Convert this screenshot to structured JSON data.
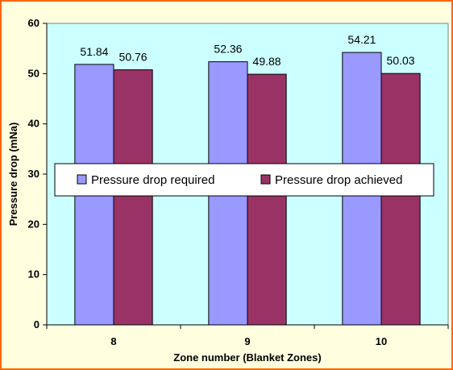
{
  "chart_data": {
    "type": "bar",
    "categories": [
      "8",
      "9",
      "10"
    ],
    "series": [
      {
        "name": "Pressure drop required",
        "values": [
          51.84,
          52.36,
          54.21
        ],
        "color": "#9999ff"
      },
      {
        "name": "Pressure drop achieved",
        "values": [
          50.76,
          49.88,
          50.03
        ],
        "color": "#993366"
      }
    ],
    "data_labels": [
      [
        "51.84",
        "52.36",
        "54.21"
      ],
      [
        "50.76",
        "49.88",
        "50.03"
      ]
    ],
    "xlabel": "Zone number (Blanket Zones)",
    "ylabel": "Pressure drop (mNa)",
    "ylim": [
      0,
      60
    ],
    "yticks": [
      "0",
      "10",
      "20",
      "30",
      "40",
      "50",
      "60"
    ],
    "grid": false,
    "legend_placement": "center",
    "plot_background": "#ccffff",
    "chart_border_color": "#ff6600",
    "chart_background": "#ffffe0"
  }
}
